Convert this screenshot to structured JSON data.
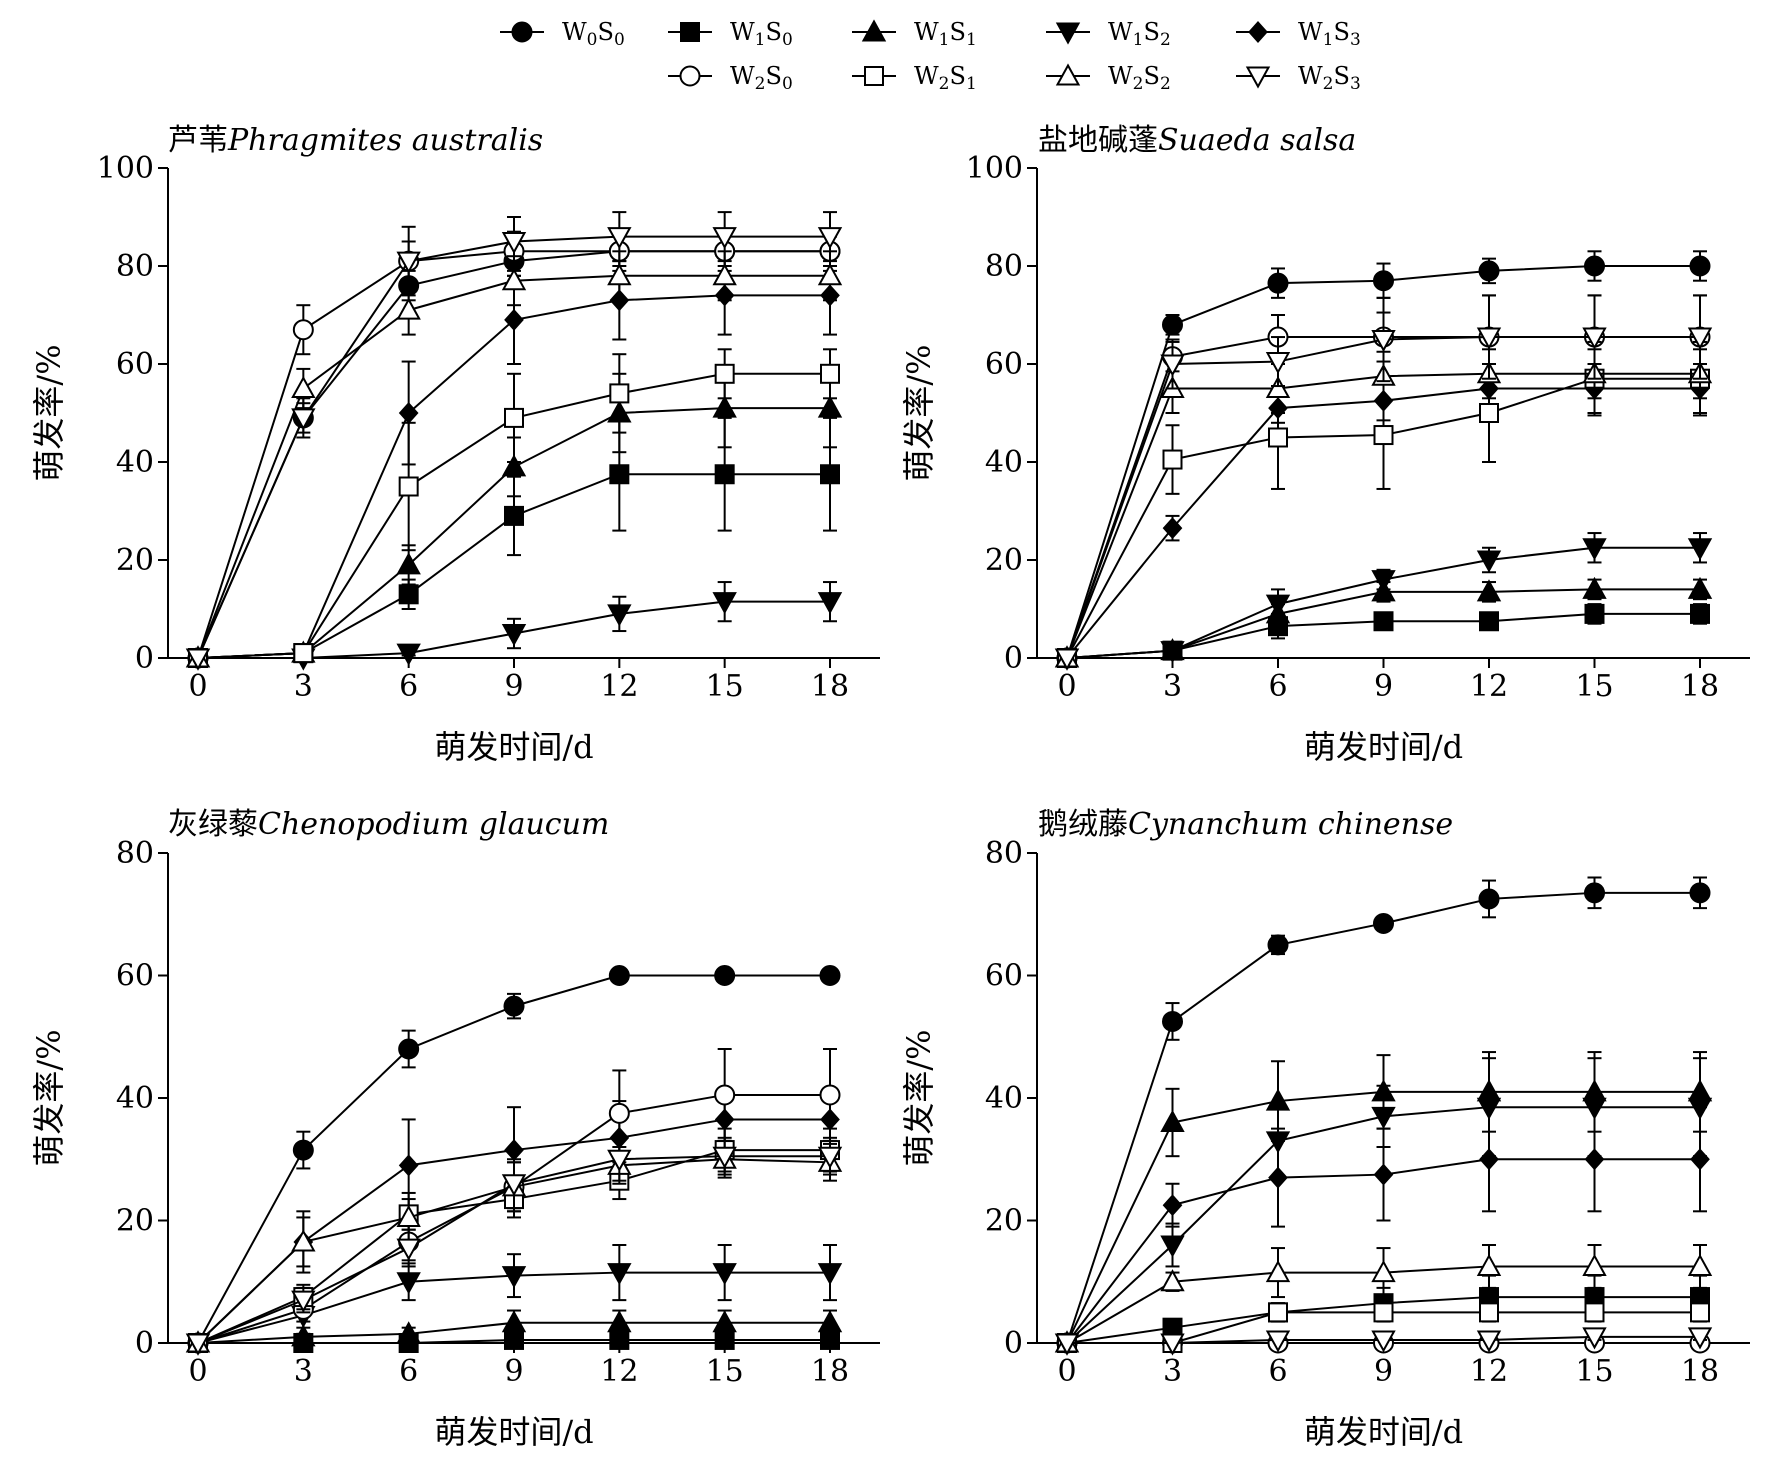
{
  "legend": {
    "entries": [
      {
        "key": "W0S0",
        "base1": "W",
        "sub1": "0",
        "base2": "S",
        "sub2": "0",
        "marker": "circle",
        "fill": "#000000"
      },
      {
        "key": "W1S0",
        "base1": "W",
        "sub1": "1",
        "base2": "S",
        "sub2": "0",
        "marker": "square",
        "fill": "#000000"
      },
      {
        "key": "W1S1",
        "base1": "W",
        "sub1": "1",
        "base2": "S",
        "sub2": "1",
        "marker": "triangle-up",
        "fill": "#000000"
      },
      {
        "key": "W1S2",
        "base1": "W",
        "sub1": "1",
        "base2": "S",
        "sub2": "2",
        "marker": "triangle-down",
        "fill": "#000000"
      },
      {
        "key": "W1S3",
        "base1": "W",
        "sub1": "1",
        "base2": "S",
        "sub2": "3",
        "marker": "diamond",
        "fill": "#000000"
      },
      {
        "key": "W2S0",
        "base1": "W",
        "sub1": "2",
        "base2": "S",
        "sub2": "0",
        "marker": "circle",
        "fill": "#ffffff"
      },
      {
        "key": "W2S1",
        "base1": "W",
        "sub1": "2",
        "base2": "S",
        "sub2": "1",
        "marker": "square",
        "fill": "#ffffff"
      },
      {
        "key": "W2S2",
        "base1": "W",
        "sub1": "2",
        "base2": "S",
        "sub2": "2",
        "marker": "triangle-up",
        "fill": "#ffffff"
      },
      {
        "key": "W2S3",
        "base1": "W",
        "sub1": "2",
        "base2": "S",
        "sub2": "3",
        "marker": "triangle-down",
        "fill": "#ffffff"
      }
    ]
  },
  "chart_data": [
    {
      "type": "line",
      "title_cn": "芦苇",
      "title_latin": "Phragmites australis",
      "xlabel": "萌发时间/d",
      "ylabel": "萌发率/%",
      "x": [
        0,
        3,
        6,
        9,
        12,
        15,
        18
      ],
      "xlim": [
        0,
        18
      ],
      "ylim": [
        0,
        100
      ],
      "yticks": [
        0,
        20,
        40,
        60,
        80,
        100
      ],
      "series": [
        {
          "key": "W0S0",
          "values": [
            0,
            49,
            76,
            81,
            83,
            83,
            83
          ],
          "errors": [
            0,
            3,
            3,
            3,
            3,
            3,
            3
          ]
        },
        {
          "key": "W1S0",
          "values": [
            0,
            1,
            13,
            29,
            37.5,
            37.5,
            37.5
          ],
          "errors": [
            0,
            0.5,
            3,
            8,
            11.5,
            11.5,
            11.5
          ]
        },
        {
          "key": "W1S1",
          "values": [
            0,
            1,
            19,
            39,
            50,
            51,
            51
          ],
          "errors": [
            0,
            0.5,
            4,
            6,
            8,
            8,
            8
          ]
        },
        {
          "key": "W1S2",
          "values": [
            0,
            0,
            1,
            5,
            9,
            11.5,
            11.5
          ],
          "errors": [
            0,
            0,
            0.5,
            3,
            3.5,
            4,
            4
          ]
        },
        {
          "key": "W1S3",
          "values": [
            0,
            1,
            50,
            69,
            73,
            74,
            74
          ],
          "errors": [
            0,
            0.5,
            10.5,
            9,
            8,
            8,
            8
          ]
        },
        {
          "key": "W2S0",
          "values": [
            0,
            67,
            81,
            83,
            83,
            83,
            83
          ],
          "errors": [
            0,
            5,
            4,
            4,
            4,
            4,
            4
          ]
        },
        {
          "key": "W2S1",
          "values": [
            0,
            1,
            35,
            49,
            54,
            58,
            58
          ],
          "errors": [
            0,
            0.5,
            13,
            9,
            8,
            5,
            5
          ]
        },
        {
          "key": "W2S2",
          "values": [
            0,
            55,
            71,
            77,
            78,
            78,
            78
          ],
          "errors": [
            0,
            4,
            5,
            5,
            5,
            5,
            5
          ]
        },
        {
          "key": "W2S3",
          "values": [
            0,
            49,
            81,
            85,
            86,
            86,
            86
          ],
          "errors": [
            0,
            4,
            7,
            5,
            5,
            5,
            5
          ]
        }
      ]
    },
    {
      "type": "line",
      "title_cn": "盐地碱蓬",
      "title_latin": "Suaeda salsa",
      "xlabel": "萌发时间/d",
      "ylabel": "萌发率/%",
      "x": [
        0,
        3,
        6,
        9,
        12,
        15,
        18
      ],
      "xlim": [
        0,
        18
      ],
      "ylim": [
        0,
        100
      ],
      "yticks": [
        0,
        20,
        40,
        60,
        80,
        100
      ],
      "series": [
        {
          "key": "W0S0",
          "values": [
            0,
            68,
            76.5,
            77,
            79,
            80,
            80
          ],
          "errors": [
            0,
            2,
            3,
            3.5,
            2.5,
            3,
            3
          ]
        },
        {
          "key": "W1S0",
          "values": [
            0,
            1.5,
            6.5,
            7.5,
            7.5,
            9,
            9
          ],
          "errors": [
            0,
            0.5,
            2.5,
            1,
            1,
            2,
            2
          ]
        },
        {
          "key": "W1S1",
          "values": [
            0,
            1.5,
            9,
            13.5,
            13.5,
            14,
            14
          ],
          "errors": [
            0,
            0.5,
            2,
            2,
            2,
            2,
            2
          ]
        },
        {
          "key": "W1S2",
          "values": [
            0,
            1.5,
            11,
            16,
            20,
            22.5,
            22.5
          ],
          "errors": [
            0,
            0.5,
            3,
            2,
            2.5,
            3,
            3
          ]
        },
        {
          "key": "W1S3",
          "values": [
            0,
            26.5,
            51,
            52.5,
            55,
            55,
            55
          ],
          "errors": [
            0,
            2.5,
            3,
            4,
            5,
            5,
            5
          ]
        },
        {
          "key": "W2S0",
          "values": [
            0,
            61.5,
            65.5,
            65.5,
            65.5,
            65.5,
            65.5
          ],
          "errors": [
            0,
            3,
            4.5,
            5,
            8.5,
            8.5,
            8.5
          ]
        },
        {
          "key": "W2S1",
          "values": [
            0,
            40.5,
            45,
            45.5,
            50,
            57,
            57
          ],
          "errors": [
            0,
            7,
            10.5,
            11,
            10,
            7.5,
            7.5
          ]
        },
        {
          "key": "W2S2",
          "values": [
            0,
            55,
            55,
            57.5,
            58,
            58,
            58
          ],
          "errors": [
            0,
            5,
            5,
            5,
            5,
            5,
            5
          ]
        },
        {
          "key": "W2S3",
          "values": [
            0,
            60,
            60.5,
            65,
            65.5,
            65.5,
            65.5
          ],
          "errors": [
            0,
            5,
            5,
            8.5,
            8.5,
            8.5,
            8.5
          ]
        }
      ]
    },
    {
      "type": "line",
      "title_cn": "灰绿藜",
      "title_latin": "Chenopodium glaucum",
      "xlabel": "萌发时间/d",
      "ylabel": "萌发率/%",
      "x": [
        0,
        3,
        6,
        9,
        12,
        15,
        18
      ],
      "xlim": [
        0,
        18
      ],
      "ylim": [
        0,
        80
      ],
      "yticks": [
        0,
        20,
        40,
        60,
        80
      ],
      "series": [
        {
          "key": "W0S0",
          "values": [
            0,
            31.5,
            48,
            55,
            60,
            60,
            60
          ],
          "errors": [
            0,
            3,
            3,
            2,
            0,
            0,
            0
          ]
        },
        {
          "key": "W1S0",
          "values": [
            0,
            0,
            0,
            0.5,
            0.5,
            0.5,
            0.5
          ],
          "errors": [
            0,
            0,
            0,
            0.5,
            0.5,
            0.5,
            0.5
          ]
        },
        {
          "key": "W1S1",
          "values": [
            0,
            1,
            1.5,
            3.3,
            3.3,
            3.3,
            3.3
          ],
          "errors": [
            0,
            0.5,
            1,
            2,
            2,
            2,
            2
          ]
        },
        {
          "key": "W1S2",
          "values": [
            0,
            4.5,
            10,
            11,
            11.5,
            11.5,
            11.5
          ],
          "errors": [
            0,
            2,
            3,
            3.5,
            4.5,
            4.5,
            4.5
          ]
        },
        {
          "key": "W1S3",
          "values": [
            0,
            16.5,
            29,
            31.5,
            33.5,
            36.5,
            36.5
          ],
          "errors": [
            0,
            5,
            7.5,
            7,
            6,
            5,
            5
          ]
        },
        {
          "key": "W2S0",
          "values": [
            0,
            5.5,
            16.5,
            25.5,
            37.5,
            40.5,
            40.5
          ],
          "errors": [
            0,
            2,
            3,
            4,
            7,
            7.5,
            7.5
          ]
        },
        {
          "key": "W2S1",
          "values": [
            0,
            7.5,
            21,
            23.5,
            26.5,
            31.5,
            31.5
          ],
          "errors": [
            0,
            2,
            2.5,
            3,
            3,
            3.5,
            3.5
          ]
        },
        {
          "key": "W2S2",
          "values": [
            0,
            16.5,
            20.5,
            25.5,
            29,
            30,
            29.5
          ],
          "errors": [
            0,
            4,
            4,
            4,
            3,
            3,
            3
          ]
        },
        {
          "key": "W2S3",
          "values": [
            0,
            7,
            15.5,
            26,
            30,
            30.5,
            30.5
          ],
          "errors": [
            0,
            2,
            3,
            4,
            3.5,
            3,
            3
          ]
        }
      ]
    },
    {
      "type": "line",
      "title_cn": "鹅绒藤",
      "title_latin": "Cynanchum chinense",
      "xlabel": "萌发时间/d",
      "ylabel": "萌发率/%",
      "x": [
        0,
        3,
        6,
        9,
        12,
        15,
        18
      ],
      "xlim": [
        0,
        18
      ],
      "ylim": [
        0,
        80
      ],
      "yticks": [
        0,
        20,
        40,
        60,
        80
      ],
      "series": [
        {
          "key": "W0S0",
          "values": [
            0,
            52.5,
            65,
            68.5,
            72.5,
            73.5,
            73.5
          ],
          "errors": [
            0,
            3,
            1.5,
            1,
            3,
            2.5,
            2.5
          ]
        },
        {
          "key": "W1S0",
          "values": [
            0,
            2.5,
            5,
            6.5,
            7.5,
            7.5,
            7.5
          ],
          "errors": [
            0,
            1,
            1.5,
            2.5,
            3.5,
            3.5,
            3.5
          ]
        },
        {
          "key": "W1S1",
          "values": [
            0,
            36,
            39.5,
            41,
            41,
            41,
            41
          ],
          "errors": [
            0,
            5.5,
            6.5,
            6,
            6.5,
            6.5,
            6.5
          ]
        },
        {
          "key": "W1S2",
          "values": [
            0,
            16,
            33,
            37,
            38.5,
            38.5,
            38.5
          ],
          "errors": [
            0,
            3.5,
            6,
            5,
            8,
            8,
            8
          ]
        },
        {
          "key": "W1S3",
          "values": [
            0,
            22.5,
            27,
            27.5,
            30,
            30,
            30
          ],
          "errors": [
            0,
            3.5,
            8,
            7.5,
            8.5,
            8.5,
            8.5
          ]
        },
        {
          "key": "W2S0",
          "values": [
            0,
            0,
            0,
            0,
            0,
            0,
            0
          ],
          "errors": [
            0,
            0,
            0,
            0,
            0,
            0,
            0
          ]
        },
        {
          "key": "W2S1",
          "values": [
            0,
            0,
            5,
            5,
            5,
            5,
            5
          ],
          "errors": [
            0,
            0,
            1.5,
            1.5,
            1.5,
            1.5,
            1.5
          ]
        },
        {
          "key": "W2S2",
          "values": [
            0,
            10,
            11.5,
            11.5,
            12.5,
            12.5,
            12.5
          ],
          "errors": [
            0,
            1.5,
            4,
            4,
            3.5,
            3.5,
            3.5
          ]
        },
        {
          "key": "W2S3",
          "values": [
            0,
            0,
            0.5,
            0.5,
            0.5,
            1,
            1
          ],
          "errors": [
            0,
            0,
            0.5,
            0.5,
            0.5,
            0.5,
            0.5
          ]
        }
      ]
    }
  ]
}
